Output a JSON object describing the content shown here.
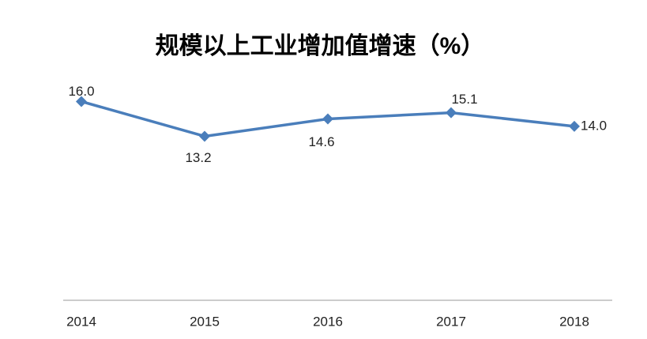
{
  "chart_data": {
    "type": "line",
    "title": "规模以上工业增加值增速（%）",
    "categories": [
      "2014",
      "2015",
      "2016",
      "2017",
      "2018"
    ],
    "values": [
      16.0,
      13.2,
      14.6,
      15.1,
      14.0
    ],
    "value_labels": [
      "16.0",
      "13.2",
      "14.6",
      "15.1",
      "14.0"
    ],
    "color": "#4a7ebb",
    "ylim": [
      0,
      18
    ]
  }
}
